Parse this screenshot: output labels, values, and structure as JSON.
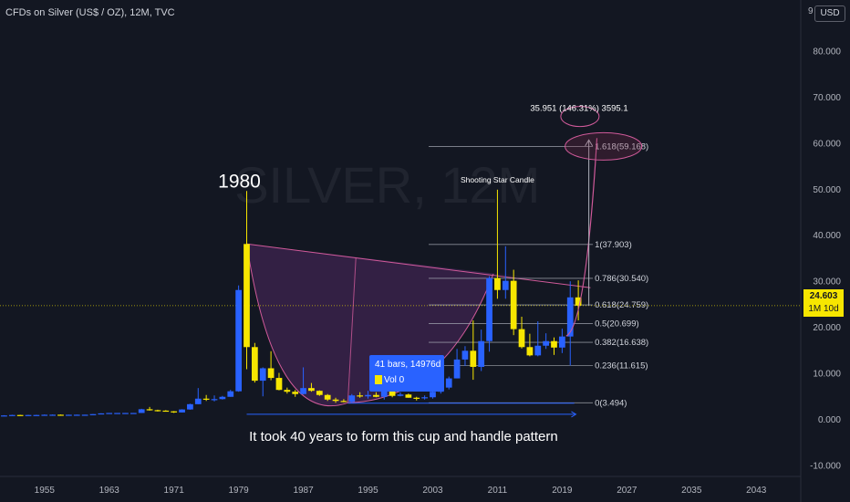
{
  "header": {
    "title": "CFDs on Silver (US$ / OZ), 12M, TVC",
    "currency": "USD",
    "corner_digit": "9"
  },
  "watermark": {
    "symbol": "SILVER, 12M"
  },
  "price_tag": {
    "value": "24.603",
    "countdown": "1M 10d"
  },
  "annotations": {
    "year_1980": "1980",
    "shooting_star": "Shooting Star Candle",
    "caption": "It took 40 years to form this cup and handle pattern",
    "projection": "35.951 (146.31%) 3595.1",
    "measure_bars": "41 bars, 14976d",
    "measure_vol": "Vol 0"
  },
  "colors": {
    "background": "#131722",
    "bull": "#2962ff",
    "bear": "#f7e600",
    "cup_fill": "#5b2c6f",
    "cup_line": "#d05a9a",
    "fib_line": "#b2b5be",
    "accent_blue": "#2962ff",
    "price_line": "#f7e600"
  },
  "chart_data": {
    "type": "candlestick",
    "title": "CFDs on Silver (US$ / OZ), 12M, TVC",
    "timeframe": "12M",
    "x_range": [
      1950,
      2049
    ],
    "ylim": [
      -12.5,
      91
    ],
    "x_ticks": [
      "1955",
      "1963",
      "1971",
      "1979",
      "1987",
      "1995",
      "2003",
      "2011",
      "2019",
      "2027",
      "2035",
      "2043"
    ],
    "x_tick_years": [
      1955,
      1963,
      1971,
      1979,
      1987,
      1995,
      2003,
      2011,
      2019,
      2027,
      2035,
      2043
    ],
    "y_ticks": [
      -10,
      0,
      10,
      20,
      30,
      40,
      50,
      60,
      70,
      80
    ],
    "y_tick_labels": [
      "-10.000",
      "0.000",
      "10.000",
      "20.000",
      "30.000",
      "40.000",
      "50.000",
      "60.000",
      "70.000",
      "80.000"
    ],
    "current_price": 24.603,
    "candles": [
      {
        "year": 1950,
        "open": 0.7,
        "high": 0.8,
        "low": 0.7,
        "close": 0.75
      },
      {
        "year": 1951,
        "open": 0.75,
        "high": 0.9,
        "low": 0.7,
        "close": 0.85
      },
      {
        "year": 1952,
        "open": 0.85,
        "high": 0.9,
        "low": 0.8,
        "close": 0.83
      },
      {
        "year": 1953,
        "open": 0.83,
        "high": 0.9,
        "low": 0.8,
        "close": 0.85
      },
      {
        "year": 1954,
        "open": 0.85,
        "high": 0.9,
        "low": 0.8,
        "close": 0.85
      },
      {
        "year": 1955,
        "open": 0.85,
        "high": 0.95,
        "low": 0.85,
        "close": 0.9
      },
      {
        "year": 1956,
        "open": 0.9,
        "high": 0.95,
        "low": 0.88,
        "close": 0.91
      },
      {
        "year": 1957,
        "open": 0.91,
        "high": 0.95,
        "low": 0.88,
        "close": 0.89
      },
      {
        "year": 1958,
        "open": 0.89,
        "high": 0.92,
        "low": 0.87,
        "close": 0.9
      },
      {
        "year": 1959,
        "open": 0.9,
        "high": 0.93,
        "low": 0.88,
        "close": 0.91
      },
      {
        "year": 1960,
        "open": 0.91,
        "high": 0.93,
        "low": 0.9,
        "close": 0.91
      },
      {
        "year": 1961,
        "open": 0.91,
        "high": 1.05,
        "low": 0.9,
        "close": 1.04
      },
      {
        "year": 1962,
        "open": 1.04,
        "high": 1.22,
        "low": 1.0,
        "close": 1.2
      },
      {
        "year": 1963,
        "open": 1.2,
        "high": 1.29,
        "low": 1.2,
        "close": 1.29
      },
      {
        "year": 1964,
        "open": 1.29,
        "high": 1.29,
        "low": 1.29,
        "close": 1.29
      },
      {
        "year": 1965,
        "open": 1.29,
        "high": 1.3,
        "low": 1.29,
        "close": 1.29
      },
      {
        "year": 1966,
        "open": 1.29,
        "high": 1.3,
        "low": 1.29,
        "close": 1.29
      },
      {
        "year": 1967,
        "open": 1.29,
        "high": 2.2,
        "low": 1.29,
        "close": 2.1
      },
      {
        "year": 1968,
        "open": 2.1,
        "high": 2.6,
        "low": 1.8,
        "close": 1.9
      },
      {
        "year": 1969,
        "open": 1.9,
        "high": 2.0,
        "low": 1.6,
        "close": 1.8
      },
      {
        "year": 1970,
        "open": 1.8,
        "high": 1.9,
        "low": 1.6,
        "close": 1.65
      },
      {
        "year": 1971,
        "open": 1.65,
        "high": 1.7,
        "low": 1.3,
        "close": 1.4
      },
      {
        "year": 1972,
        "open": 1.4,
        "high": 2.1,
        "low": 1.4,
        "close": 2.05
      },
      {
        "year": 1973,
        "open": 2.05,
        "high": 3.3,
        "low": 2.0,
        "close": 3.2
      },
      {
        "year": 1974,
        "open": 3.2,
        "high": 6.7,
        "low": 3.2,
        "close": 4.4
      },
      {
        "year": 1975,
        "open": 4.4,
        "high": 5.2,
        "low": 3.9,
        "close": 4.2
      },
      {
        "year": 1976,
        "open": 4.2,
        "high": 5.1,
        "low": 3.8,
        "close": 4.3
      },
      {
        "year": 1977,
        "open": 4.3,
        "high": 5.0,
        "low": 4.2,
        "close": 4.8
      },
      {
        "year": 1978,
        "open": 4.8,
        "high": 6.3,
        "low": 4.8,
        "close": 6.0
      },
      {
        "year": 1979,
        "open": 6.0,
        "high": 29.0,
        "low": 5.9,
        "close": 28.0
      },
      {
        "year": 1980,
        "open": 38.0,
        "high": 49.5,
        "low": 10.8,
        "close": 15.6
      },
      {
        "year": 1981,
        "open": 15.6,
        "high": 16.5,
        "low": 7.9,
        "close": 8.3
      },
      {
        "year": 1982,
        "open": 8.3,
        "high": 11.2,
        "low": 4.9,
        "close": 11.0
      },
      {
        "year": 1983,
        "open": 11.0,
        "high": 14.7,
        "low": 8.4,
        "close": 8.9
      },
      {
        "year": 1984,
        "open": 8.9,
        "high": 10.0,
        "low": 6.2,
        "close": 6.3
      },
      {
        "year": 1985,
        "open": 6.3,
        "high": 6.8,
        "low": 5.5,
        "close": 5.9
      },
      {
        "year": 1986,
        "open": 5.9,
        "high": 6.3,
        "low": 4.8,
        "close": 5.4
      },
      {
        "year": 1987,
        "open": 5.4,
        "high": 11.2,
        "low": 5.3,
        "close": 6.7
      },
      {
        "year": 1988,
        "open": 6.7,
        "high": 7.8,
        "low": 5.9,
        "close": 6.1
      },
      {
        "year": 1989,
        "open": 6.1,
        "high": 6.2,
        "low": 5.0,
        "close": 5.2
      },
      {
        "year": 1990,
        "open": 5.2,
        "high": 5.4,
        "low": 3.9,
        "close": 4.2
      },
      {
        "year": 1991,
        "open": 4.2,
        "high": 4.6,
        "low": 3.5,
        "close": 3.9
      },
      {
        "year": 1992,
        "open": 3.9,
        "high": 4.3,
        "low": 3.6,
        "close": 3.7
      },
      {
        "year": 1993,
        "open": 3.7,
        "high": 5.4,
        "low": 3.5,
        "close": 5.1
      },
      {
        "year": 1994,
        "open": 5.1,
        "high": 5.8,
        "low": 4.6,
        "close": 4.9
      },
      {
        "year": 1995,
        "open": 4.9,
        "high": 6.1,
        "low": 4.4,
        "close": 5.2
      },
      {
        "year": 1996,
        "open": 5.2,
        "high": 5.8,
        "low": 4.7,
        "close": 4.8
      },
      {
        "year": 1997,
        "open": 4.8,
        "high": 6.3,
        "low": 4.2,
        "close": 6.0
      },
      {
        "year": 1998,
        "open": 6.0,
        "high": 7.3,
        "low": 4.7,
        "close": 5.0
      },
      {
        "year": 1999,
        "open": 5.0,
        "high": 5.8,
        "low": 4.9,
        "close": 5.3
      },
      {
        "year": 2000,
        "open": 5.3,
        "high": 5.5,
        "low": 4.6,
        "close": 4.6
      },
      {
        "year": 2001,
        "open": 4.6,
        "high": 4.8,
        "low": 4.0,
        "close": 4.5
      },
      {
        "year": 2002,
        "open": 4.5,
        "high": 5.1,
        "low": 4.2,
        "close": 4.7
      },
      {
        "year": 2003,
        "open": 4.7,
        "high": 6.0,
        "low": 4.4,
        "close": 5.9
      },
      {
        "year": 2004,
        "open": 5.9,
        "high": 8.3,
        "low": 5.5,
        "close": 6.8
      },
      {
        "year": 2005,
        "open": 6.8,
        "high": 9.2,
        "low": 6.4,
        "close": 8.8
      },
      {
        "year": 2006,
        "open": 8.8,
        "high": 15.2,
        "low": 8.8,
        "close": 12.9
      },
      {
        "year": 2007,
        "open": 12.9,
        "high": 15.8,
        "low": 11.5,
        "close": 14.8
      },
      {
        "year": 2008,
        "open": 14.8,
        "high": 21.4,
        "low": 8.5,
        "close": 11.3
      },
      {
        "year": 2009,
        "open": 11.3,
        "high": 19.4,
        "low": 10.4,
        "close": 16.9
      },
      {
        "year": 2010,
        "open": 16.9,
        "high": 31.0,
        "low": 14.6,
        "close": 30.6
      },
      {
        "year": 2011,
        "open": 30.6,
        "high": 49.8,
        "low": 26.1,
        "close": 28.0
      },
      {
        "year": 2012,
        "open": 28.0,
        "high": 37.5,
        "low": 26.1,
        "close": 30.0
      },
      {
        "year": 2013,
        "open": 30.0,
        "high": 32.4,
        "low": 18.2,
        "close": 19.5
      },
      {
        "year": 2014,
        "open": 19.5,
        "high": 22.2,
        "low": 15.3,
        "close": 15.6
      },
      {
        "year": 2015,
        "open": 15.6,
        "high": 18.5,
        "low": 13.6,
        "close": 13.8
      },
      {
        "year": 2016,
        "open": 13.8,
        "high": 21.2,
        "low": 13.6,
        "close": 15.9
      },
      {
        "year": 2017,
        "open": 15.9,
        "high": 18.6,
        "low": 15.2,
        "close": 16.9
      },
      {
        "year": 2018,
        "open": 16.9,
        "high": 17.7,
        "low": 13.9,
        "close": 15.5
      },
      {
        "year": 2019,
        "open": 15.5,
        "high": 19.6,
        "low": 14.3,
        "close": 17.9
      },
      {
        "year": 2020,
        "open": 17.9,
        "high": 29.9,
        "low": 11.6,
        "close": 26.4
      },
      {
        "year": 2021,
        "open": 26.4,
        "high": 30.1,
        "low": 21.4,
        "close": 24.6
      }
    ],
    "fib_levels": [
      {
        "label": "0(3.494)",
        "value": 3.494
      },
      {
        "label": "0.236(11.615)",
        "value": 11.615
      },
      {
        "label": "0.382(16.638)",
        "value": 16.638
      },
      {
        "label": "0.5(20.699)",
        "value": 20.699
      },
      {
        "label": "0.618(24.759)",
        "value": 24.759
      },
      {
        "label": "0.786(30.540)",
        "value": 30.54
      },
      {
        "label": "1(37.903)",
        "value": 37.903
      },
      {
        "label": "1.618(59.168)",
        "value": 59.168
      }
    ]
  }
}
